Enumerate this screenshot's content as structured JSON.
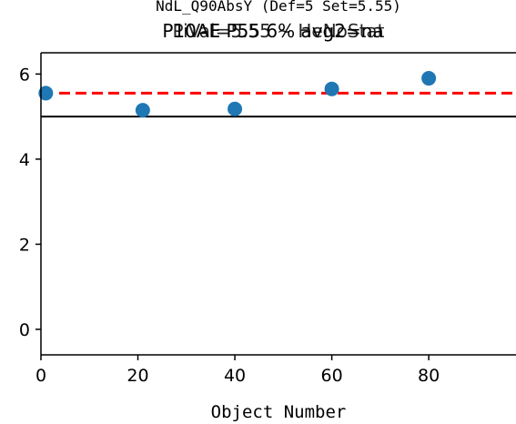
{
  "chart_data": {
    "type": "scatter",
    "title_lines": [
      "NdL_Q90AbsY (Def=5 Set=5.55)",
      "P10AE P55 6% avg2=na",
      "PiVal=5.55 ~ HeNoStat"
    ],
    "xlabel": "Object Number",
    "ylabel": "",
    "xlim": [
      0,
      98
    ],
    "ylim": [
      -0.6,
      6.5
    ],
    "x_ticks": [
      0,
      20,
      40,
      60,
      80
    ],
    "y_ticks": [
      0,
      2,
      4,
      6
    ],
    "x_tick_labels": [
      "0",
      "20",
      "40",
      "60",
      "80"
    ],
    "y_tick_labels": [
      "0",
      "2",
      "4",
      "6"
    ],
    "grid": false,
    "series": [
      {
        "x": [
          1,
          21,
          40,
          60,
          80
        ],
        "y": [
          5.55,
          5.15,
          5.18,
          5.65,
          5.9
        ],
        "color": "#1f77b4"
      }
    ],
    "reference_lines": [
      {
        "y": 5.55,
        "style": "dashed",
        "color": "#ff0000"
      },
      {
        "y": 5.0,
        "style": "solid",
        "color": "#000000"
      }
    ]
  }
}
